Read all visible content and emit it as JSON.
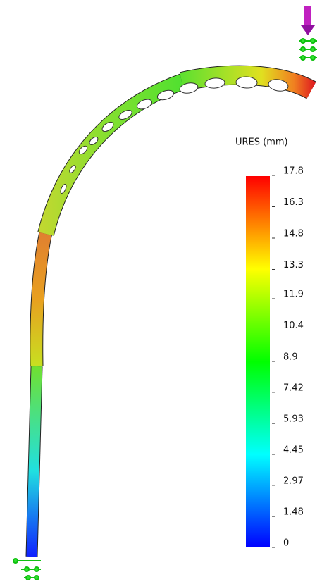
{
  "legend": {
    "title": "URES (mm)",
    "ticks": [
      17.8,
      16.3,
      14.8,
      13.3,
      11.9,
      10.4,
      8.9,
      7.42,
      5.93,
      4.45,
      2.97,
      1.48,
      0
    ]
  }
}
